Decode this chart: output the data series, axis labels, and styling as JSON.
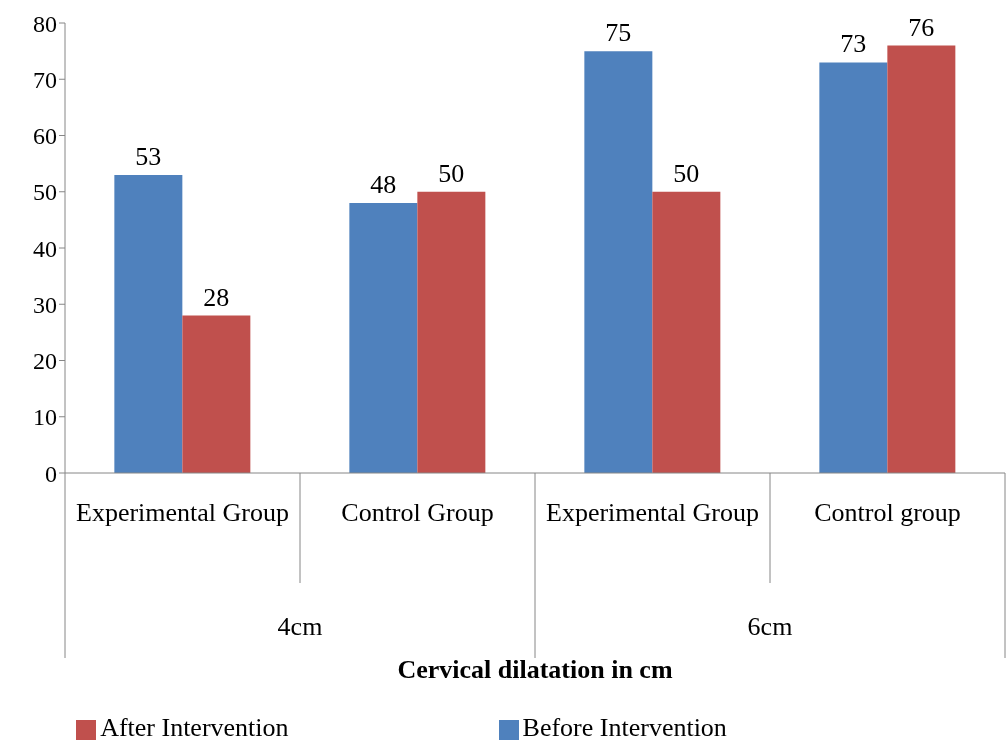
{
  "chart_data": {
    "type": "bar",
    "xlabel": "Cervical dilatation in cm",
    "categories": [
      "Experimental Group",
      "Control Group",
      "Experimental Group",
      "Control group"
    ],
    "annotations": [
      "4cm",
      "6cm"
    ],
    "series": [
      {
        "name": "Before Intervention",
        "color": "#4f81bd",
        "values": [
          53,
          48,
          75,
          73
        ]
      },
      {
        "name": "After Intervention",
        "color": "#c0504d",
        "values": [
          28,
          50,
          50,
          76
        ]
      }
    ],
    "ylim": [
      0,
      80
    ],
    "yticks": [
      0,
      10,
      20,
      30,
      40,
      50,
      60,
      70,
      80
    ],
    "grid": false,
    "legend": "bottom",
    "data_labels": true
  }
}
